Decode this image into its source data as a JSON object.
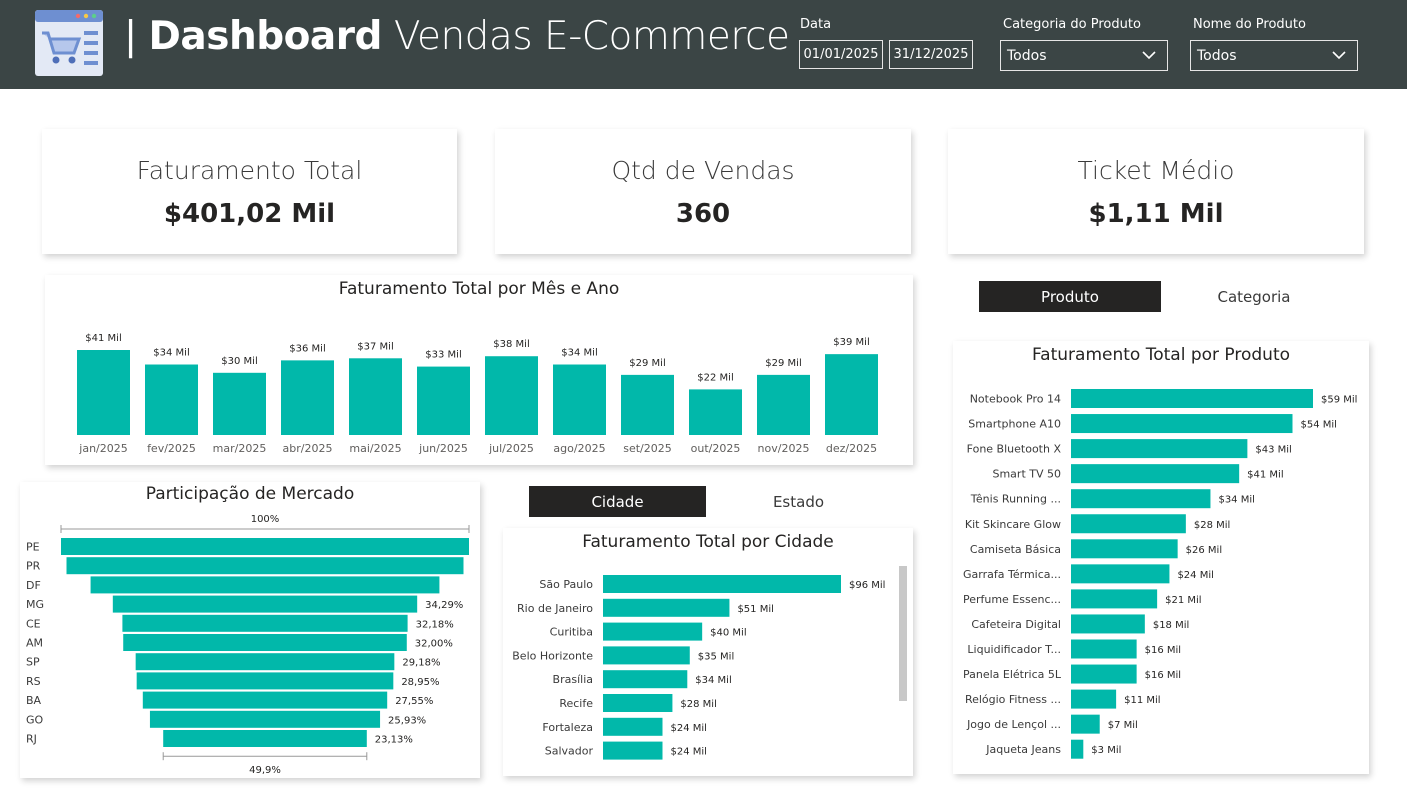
{
  "header": {
    "title_sep": "|",
    "title_bold": "Dashboard",
    "title_light": "Vendas E-Commerce",
    "filters": {
      "date_label": "Data",
      "date_start": "01/01/2025",
      "date_end": "31/12/2025",
      "category_label": "Categoria do Produto",
      "category_value": "Todos",
      "product_label": "Nome do Produto",
      "product_value": "Todos"
    }
  },
  "kpis": [
    {
      "title": "Faturamento Total",
      "value": "$401,02 Mil"
    },
    {
      "title": "Qtd de Vendas",
      "value": "360"
    },
    {
      "title": "Ticket Médio",
      "value": "$1,11 Mil"
    }
  ],
  "product_toggle": {
    "active": "Produto",
    "inactive": "Categoria"
  },
  "city_toggle": {
    "active": "Cidade",
    "inactive": "Estado"
  },
  "colors": {
    "accent": "#01b8aa",
    "header": "#3b4545"
  },
  "chart_data": [
    {
      "type": "bar",
      "title": "Faturamento Total por Mês e Ano",
      "categories": [
        "jan/2025",
        "fev/2025",
        "mar/2025",
        "abr/2025",
        "mai/2025",
        "jun/2025",
        "jul/2025",
        "ago/2025",
        "set/2025",
        "out/2025",
        "nov/2025",
        "dez/2025"
      ],
      "values": [
        41,
        34,
        30,
        36,
        37,
        33,
        38,
        34,
        29,
        22,
        29,
        39
      ],
      "labels": [
        "$41 Mil",
        "$34 Mil",
        "$30 Mil",
        "$36 Mil",
        "$37 Mil",
        "$33 Mil",
        "$38 Mil",
        "$34 Mil",
        "$29 Mil",
        "$22 Mil",
        "$29 Mil",
        "$39 Mil"
      ],
      "xlabel": "",
      "ylabel": ""
    },
    {
      "type": "funnel",
      "title": "Participação de Mercado",
      "categories": [
        "PE",
        "PR",
        "DF",
        "MG",
        "CE",
        "AM",
        "SP",
        "RS",
        "BA",
        "GO",
        "RJ"
      ],
      "values": [
        100,
        97.3,
        85.5,
        74.6,
        69.9,
        69.5,
        63.4,
        62.9,
        59.9,
        56.4,
        49.9
      ],
      "labels": [
        "",
        "",
        "",
        "34,29%",
        "32,18%",
        "32,00%",
        "29,18%",
        "28,95%",
        "27,55%",
        "25,93%",
        "23,13%"
      ],
      "top_label": "100%",
      "bottom_label": "49,9%"
    },
    {
      "type": "bar",
      "orientation": "horizontal",
      "title": "Faturamento Total por Cidade",
      "categories": [
        "São Paulo",
        "Rio de Janeiro",
        "Curitiba",
        "Belo Horizonte",
        "Brasília",
        "Recife",
        "Fortaleza",
        "Salvador"
      ],
      "values": [
        96,
        51,
        40,
        35,
        34,
        28,
        24,
        24
      ],
      "labels": [
        "$96 Mil",
        "$51 Mil",
        "$40 Mil",
        "$35 Mil",
        "$34 Mil",
        "$28 Mil",
        "$24 Mil",
        "$24 Mil"
      ]
    },
    {
      "type": "bar",
      "orientation": "horizontal",
      "title": "Faturamento Total por Produto",
      "categories": [
        "Notebook Pro 14",
        "Smartphone A10",
        "Fone Bluetooth X",
        "Smart TV 50",
        "Tênis Running ...",
        "Kit Skincare Glow",
        "Camiseta Básica",
        "Garrafa Térmica...",
        "Perfume Essenc...",
        "Cafeteira Digital",
        "Liquidificador T...",
        "Panela Elétrica 5L",
        "Relógio Fitness ...",
        "Jogo de Lençol ...",
        "Jaqueta Jeans"
      ],
      "values": [
        59,
        54,
        43,
        41,
        34,
        28,
        26,
        24,
        21,
        18,
        16,
        16,
        11,
        7,
        3
      ],
      "labels": [
        "$59 Mil",
        "$54 Mil",
        "$43 Mil",
        "$41 Mil",
        "$34 Mil",
        "$28 Mil",
        "$26 Mil",
        "$24 Mil",
        "$21 Mil",
        "$18 Mil",
        "$16 Mil",
        "$16 Mil",
        "$11 Mil",
        "$7 Mil",
        "$3 Mil"
      ]
    }
  ]
}
